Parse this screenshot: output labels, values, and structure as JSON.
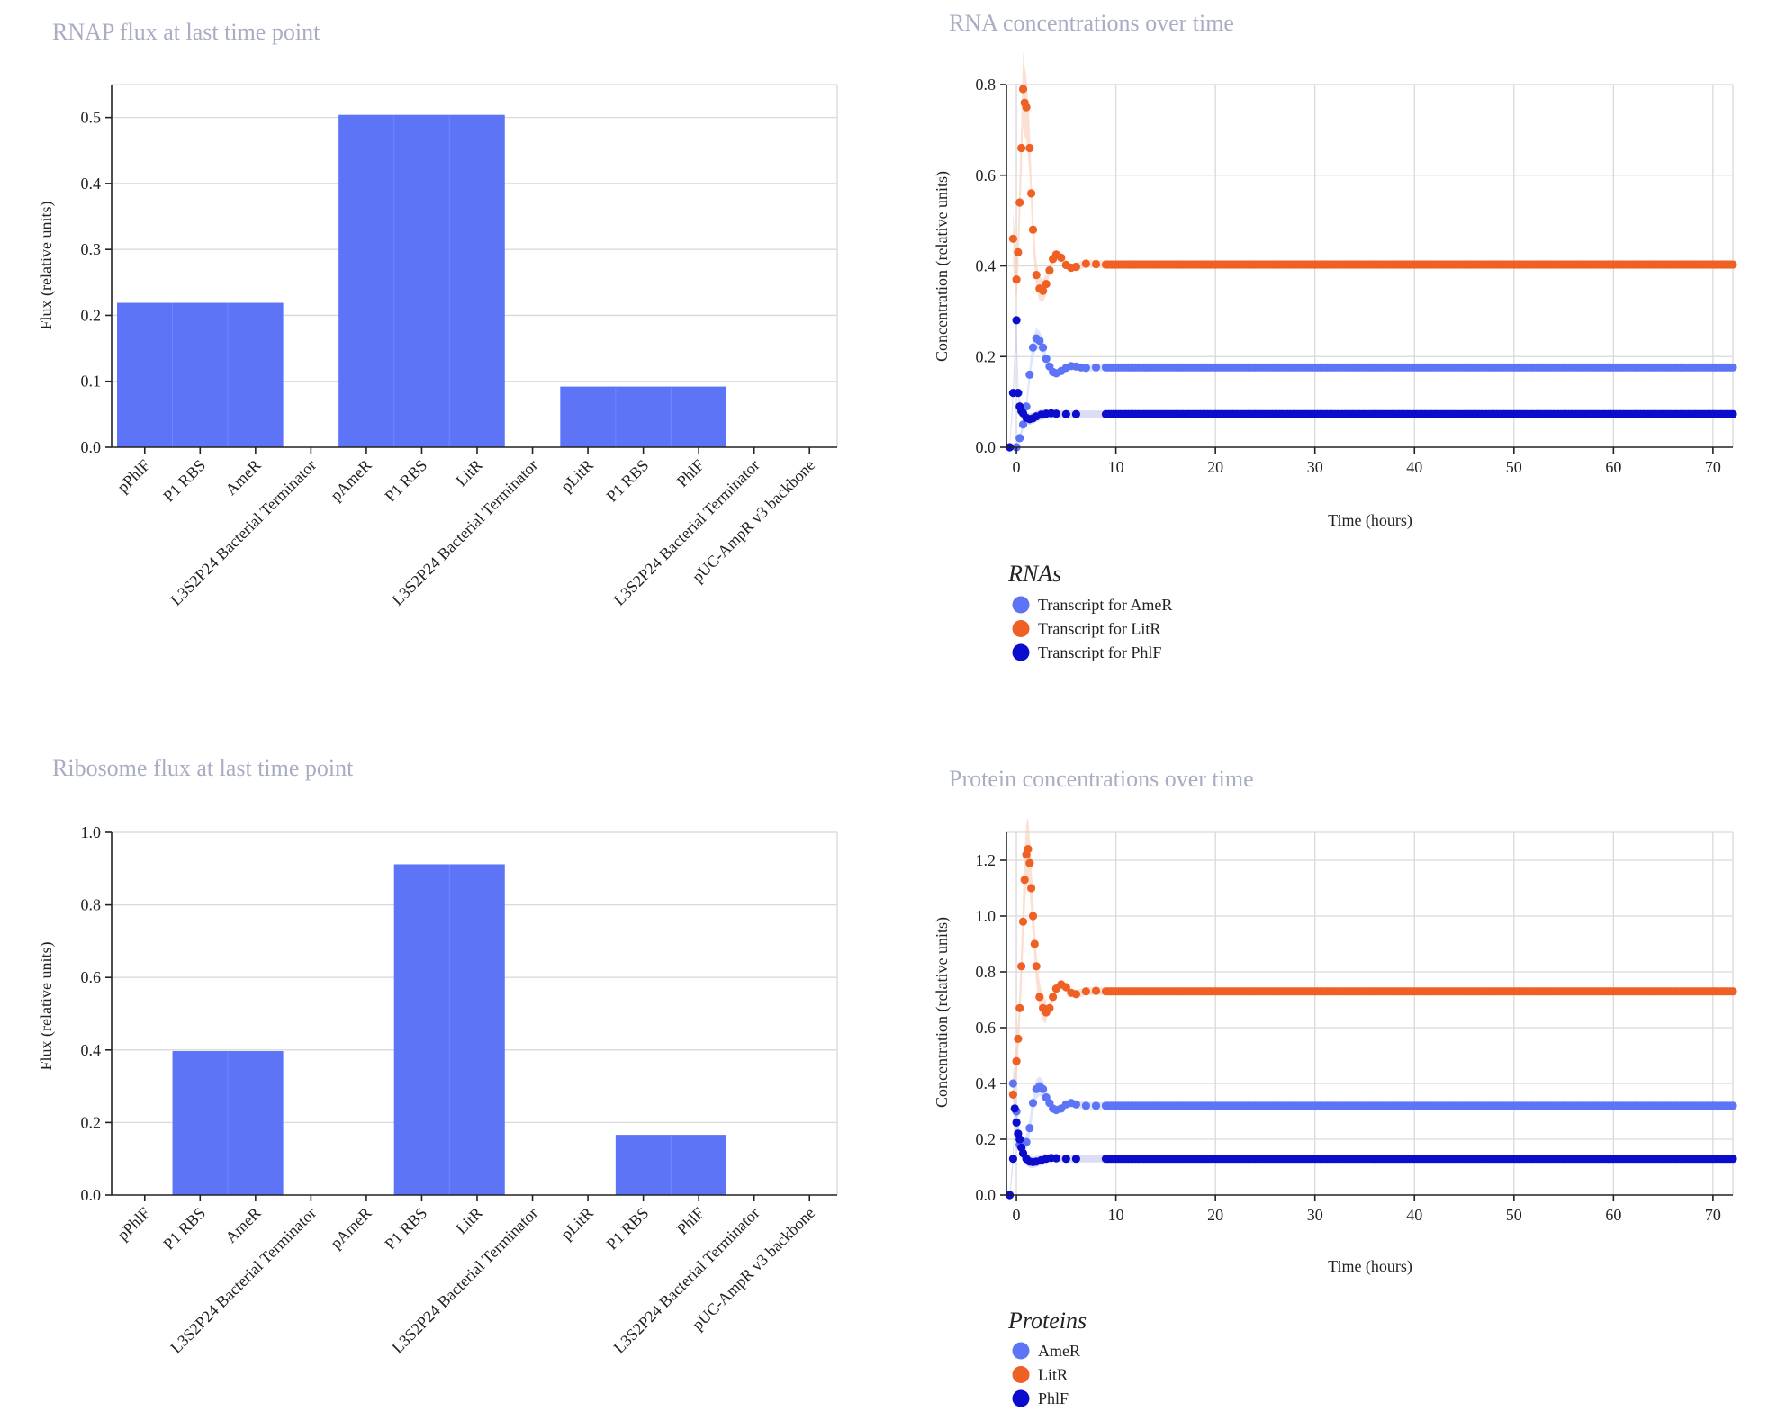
{
  "chart_data": [
    {
      "id": "rnap",
      "type": "bar",
      "title": "RNAP flux at last time point",
      "xlabel": "",
      "ylabel": "Flux (relative units)",
      "ylim": [
        0,
        0.55
      ],
      "yticks": [
        "0.0",
        "0.1",
        "0.2",
        "0.3",
        "0.4",
        "0.5"
      ],
      "ytick_values": [
        0,
        0.1,
        0.2,
        0.3,
        0.4,
        0.5
      ],
      "categories": [
        "pPhlF",
        "P1 RBS",
        "AmeR",
        "L3S2P24 Bacterial Terminator",
        "pAmeR",
        "P1 RBS",
        "LitR",
        "L3S2P24 Bacterial Terminator",
        "pLitR",
        "P1 RBS",
        "PhlF",
        "L3S2P24 Bacterial Terminator",
        "pUC-AmpR v3 backbone"
      ],
      "values": [
        0.219,
        0.219,
        0.219,
        0,
        0.504,
        0.504,
        0.504,
        0,
        0.092,
        0.092,
        0.092,
        0,
        0
      ],
      "color": "#5d74f7",
      "grid": true
    },
    {
      "id": "ribosome",
      "type": "bar",
      "title": "Ribosome flux at last time point",
      "xlabel": "",
      "ylabel": "Flux (relative units)",
      "ylim": [
        0,
        1.0
      ],
      "yticks": [
        "0.0",
        "0.2",
        "0.4",
        "0.6",
        "0.8",
        "1.0"
      ],
      "ytick_values": [
        0,
        0.2,
        0.4,
        0.6,
        0.8,
        1.0
      ],
      "categories": [
        "pPhlF",
        "P1 RBS",
        "AmeR",
        "L3S2P24 Bacterial Terminator",
        "pAmeR",
        "P1 RBS",
        "LitR",
        "L3S2P24 Bacterial Terminator",
        "pLitR",
        "P1 RBS",
        "PhlF",
        "L3S2P24 Bacterial Terminator",
        "pUC-AmpR v3 backbone"
      ],
      "values": [
        0,
        0.397,
        0.397,
        0,
        0,
        0.912,
        0.912,
        0,
        0,
        0.166,
        0.166,
        0,
        0
      ],
      "color": "#5d74f7",
      "grid": true
    },
    {
      "id": "rna",
      "type": "scatter",
      "title": "RNA concentrations over time",
      "xlabel": "Time (hours)",
      "ylabel": "Concentration (relative units)",
      "xlim": [
        -1,
        72
      ],
      "ylim": [
        0,
        0.8
      ],
      "xticks": [
        "0",
        "10",
        "20",
        "30",
        "40",
        "50",
        "60",
        "70"
      ],
      "xtick_values": [
        0,
        10,
        20,
        30,
        40,
        50,
        60,
        70
      ],
      "yticks": [
        "0.0",
        "0.2",
        "0.4",
        "0.6",
        "0.8"
      ],
      "ytick_values": [
        0,
        0.2,
        0.4,
        0.6,
        0.8
      ],
      "legend_title": "RNAs",
      "legend_position": "bottom-left",
      "series": [
        {
          "name": "Transcript for AmeR",
          "color": "#5d74f7",
          "band_color": "#c9d2ff",
          "points": [
            [
              0,
              0.0
            ],
            [
              0.33,
              0.02
            ],
            [
              0.67,
              0.05
            ],
            [
              1.0,
              0.09
            ],
            [
              1.33,
              0.16
            ],
            [
              1.67,
              0.22
            ],
            [
              2.0,
              0.24
            ],
            [
              2.33,
              0.235
            ],
            [
              2.67,
              0.22
            ],
            [
              3.0,
              0.195
            ],
            [
              3.33,
              0.178
            ],
            [
              3.67,
              0.166
            ],
            [
              4.0,
              0.163
            ],
            [
              4.5,
              0.168
            ],
            [
              5.0,
              0.175
            ],
            [
              5.5,
              0.179
            ],
            [
              6.0,
              0.178
            ],
            [
              6.5,
              0.176
            ],
            [
              7.0,
              0.175
            ],
            [
              8.0,
              0.176
            ],
            [
              72,
              0.176
            ]
          ]
        },
        {
          "name": "Transcript for LitR",
          "color": "#ee6024",
          "band_color": "#f9cdb5",
          "points": [
            [
              -0.33,
              0.46
            ],
            [
              0,
              0.37
            ],
            [
              0.17,
              0.43
            ],
            [
              0.33,
              0.54
            ],
            [
              0.5,
              0.66
            ],
            [
              0.67,
              0.79
            ],
            [
              0.83,
              0.76
            ],
            [
              1.0,
              0.75
            ],
            [
              1.33,
              0.66
            ],
            [
              1.5,
              0.56
            ],
            [
              1.67,
              0.48
            ],
            [
              2.0,
              0.38
            ],
            [
              2.33,
              0.35
            ],
            [
              2.67,
              0.345
            ],
            [
              3.0,
              0.36
            ],
            [
              3.33,
              0.39
            ],
            [
              3.67,
              0.415
            ],
            [
              4.0,
              0.425
            ],
            [
              4.5,
              0.418
            ],
            [
              5.0,
              0.402
            ],
            [
              5.5,
              0.396
            ],
            [
              6.0,
              0.398
            ],
            [
              7.0,
              0.405
            ],
            [
              8.0,
              0.404
            ],
            [
              9.0,
              0.403
            ],
            [
              72,
              0.403
            ]
          ]
        },
        {
          "name": "Transcript for PhlF",
          "color": "#0c0ccc",
          "band_color": "#c4c4ee",
          "points": [
            [
              -0.67,
              0.0
            ],
            [
              -0.33,
              0.12
            ],
            [
              0,
              0.28
            ],
            [
              0.17,
              0.12
            ],
            [
              0.33,
              0.09
            ],
            [
              0.5,
              0.08
            ],
            [
              0.67,
              0.075
            ],
            [
              1.0,
              0.065
            ],
            [
              1.33,
              0.062
            ],
            [
              1.67,
              0.064
            ],
            [
              2.0,
              0.068
            ],
            [
              2.5,
              0.072
            ],
            [
              3.0,
              0.074
            ],
            [
              3.5,
              0.075
            ],
            [
              4.0,
              0.074
            ],
            [
              5.0,
              0.073
            ],
            [
              6.0,
              0.073
            ],
            [
              72,
              0.073
            ]
          ]
        }
      ]
    },
    {
      "id": "protein",
      "type": "scatter",
      "title": "Protein concentrations over time",
      "xlabel": "Time (hours)",
      "ylabel": "Concentration (relative units)",
      "xlim": [
        -1,
        72
      ],
      "ylim": [
        0,
        1.3
      ],
      "xticks": [
        "0",
        "10",
        "20",
        "30",
        "40",
        "50",
        "60",
        "70"
      ],
      "xtick_values": [
        0,
        10,
        20,
        30,
        40,
        50,
        60,
        70
      ],
      "yticks": [
        "0.0",
        "0.2",
        "0.4",
        "0.6",
        "0.8",
        "1.0",
        "1.2"
      ],
      "ytick_values": [
        0,
        0.2,
        0.4,
        0.6,
        0.8,
        1.0,
        1.2
      ],
      "legend_title": "Proteins",
      "legend_position": "bottom-left",
      "series": [
        {
          "name": "AmeR",
          "color": "#5d74f7",
          "band_color": "#c9d2ff",
          "points": [
            [
              -0.33,
              0.4
            ],
            [
              0,
              0.3
            ],
            [
              0.33,
              0.18
            ],
            [
              0.67,
              0.15
            ],
            [
              1.0,
              0.19
            ],
            [
              1.33,
              0.24
            ],
            [
              1.67,
              0.33
            ],
            [
              2.0,
              0.38
            ],
            [
              2.33,
              0.39
            ],
            [
              2.67,
              0.38
            ],
            [
              3.0,
              0.35
            ],
            [
              3.33,
              0.33
            ],
            [
              3.67,
              0.31
            ],
            [
              4.0,
              0.305
            ],
            [
              4.5,
              0.31
            ],
            [
              5.0,
              0.325
            ],
            [
              5.5,
              0.33
            ],
            [
              6.0,
              0.325
            ],
            [
              7.0,
              0.32
            ],
            [
              8.0,
              0.32
            ],
            [
              72,
              0.32
            ]
          ]
        },
        {
          "name": "LitR",
          "color": "#ee6024",
          "band_color": "#f9cdb5",
          "points": [
            [
              -0.33,
              0.36
            ],
            [
              0,
              0.48
            ],
            [
              0.17,
              0.56
            ],
            [
              0.33,
              0.67
            ],
            [
              0.5,
              0.82
            ],
            [
              0.67,
              0.98
            ],
            [
              0.83,
              1.13
            ],
            [
              1.0,
              1.22
            ],
            [
              1.17,
              1.24
            ],
            [
              1.33,
              1.19
            ],
            [
              1.5,
              1.1
            ],
            [
              1.67,
              1.0
            ],
            [
              1.83,
              0.9
            ],
            [
              2.0,
              0.82
            ],
            [
              2.33,
              0.71
            ],
            [
              2.67,
              0.67
            ],
            [
              3.0,
              0.655
            ],
            [
              3.33,
              0.67
            ],
            [
              3.67,
              0.71
            ],
            [
              4.0,
              0.74
            ],
            [
              4.5,
              0.755
            ],
            [
              5.0,
              0.745
            ],
            [
              5.5,
              0.725
            ],
            [
              6.0,
              0.72
            ],
            [
              7.0,
              0.73
            ],
            [
              8.0,
              0.732
            ],
            [
              9.0,
              0.73
            ],
            [
              72,
              0.73
            ]
          ]
        },
        {
          "name": "PhlF",
          "color": "#0c0ccc",
          "band_color": "#c4c4ee",
          "points": [
            [
              -0.67,
              0.0
            ],
            [
              -0.33,
              0.13
            ],
            [
              -0.17,
              0.31
            ],
            [
              0,
              0.26
            ],
            [
              0.17,
              0.22
            ],
            [
              0.33,
              0.2
            ],
            [
              0.5,
              0.17
            ],
            [
              0.67,
              0.15
            ],
            [
              1.0,
              0.13
            ],
            [
              1.33,
              0.12
            ],
            [
              1.67,
              0.118
            ],
            [
              2.0,
              0.12
            ],
            [
              2.5,
              0.125
            ],
            [
              3.0,
              0.13
            ],
            [
              3.5,
              0.133
            ],
            [
              4.0,
              0.132
            ],
            [
              5.0,
              0.13
            ],
            [
              6.0,
              0.13
            ],
            [
              72,
              0.13
            ]
          ]
        }
      ]
    }
  ]
}
